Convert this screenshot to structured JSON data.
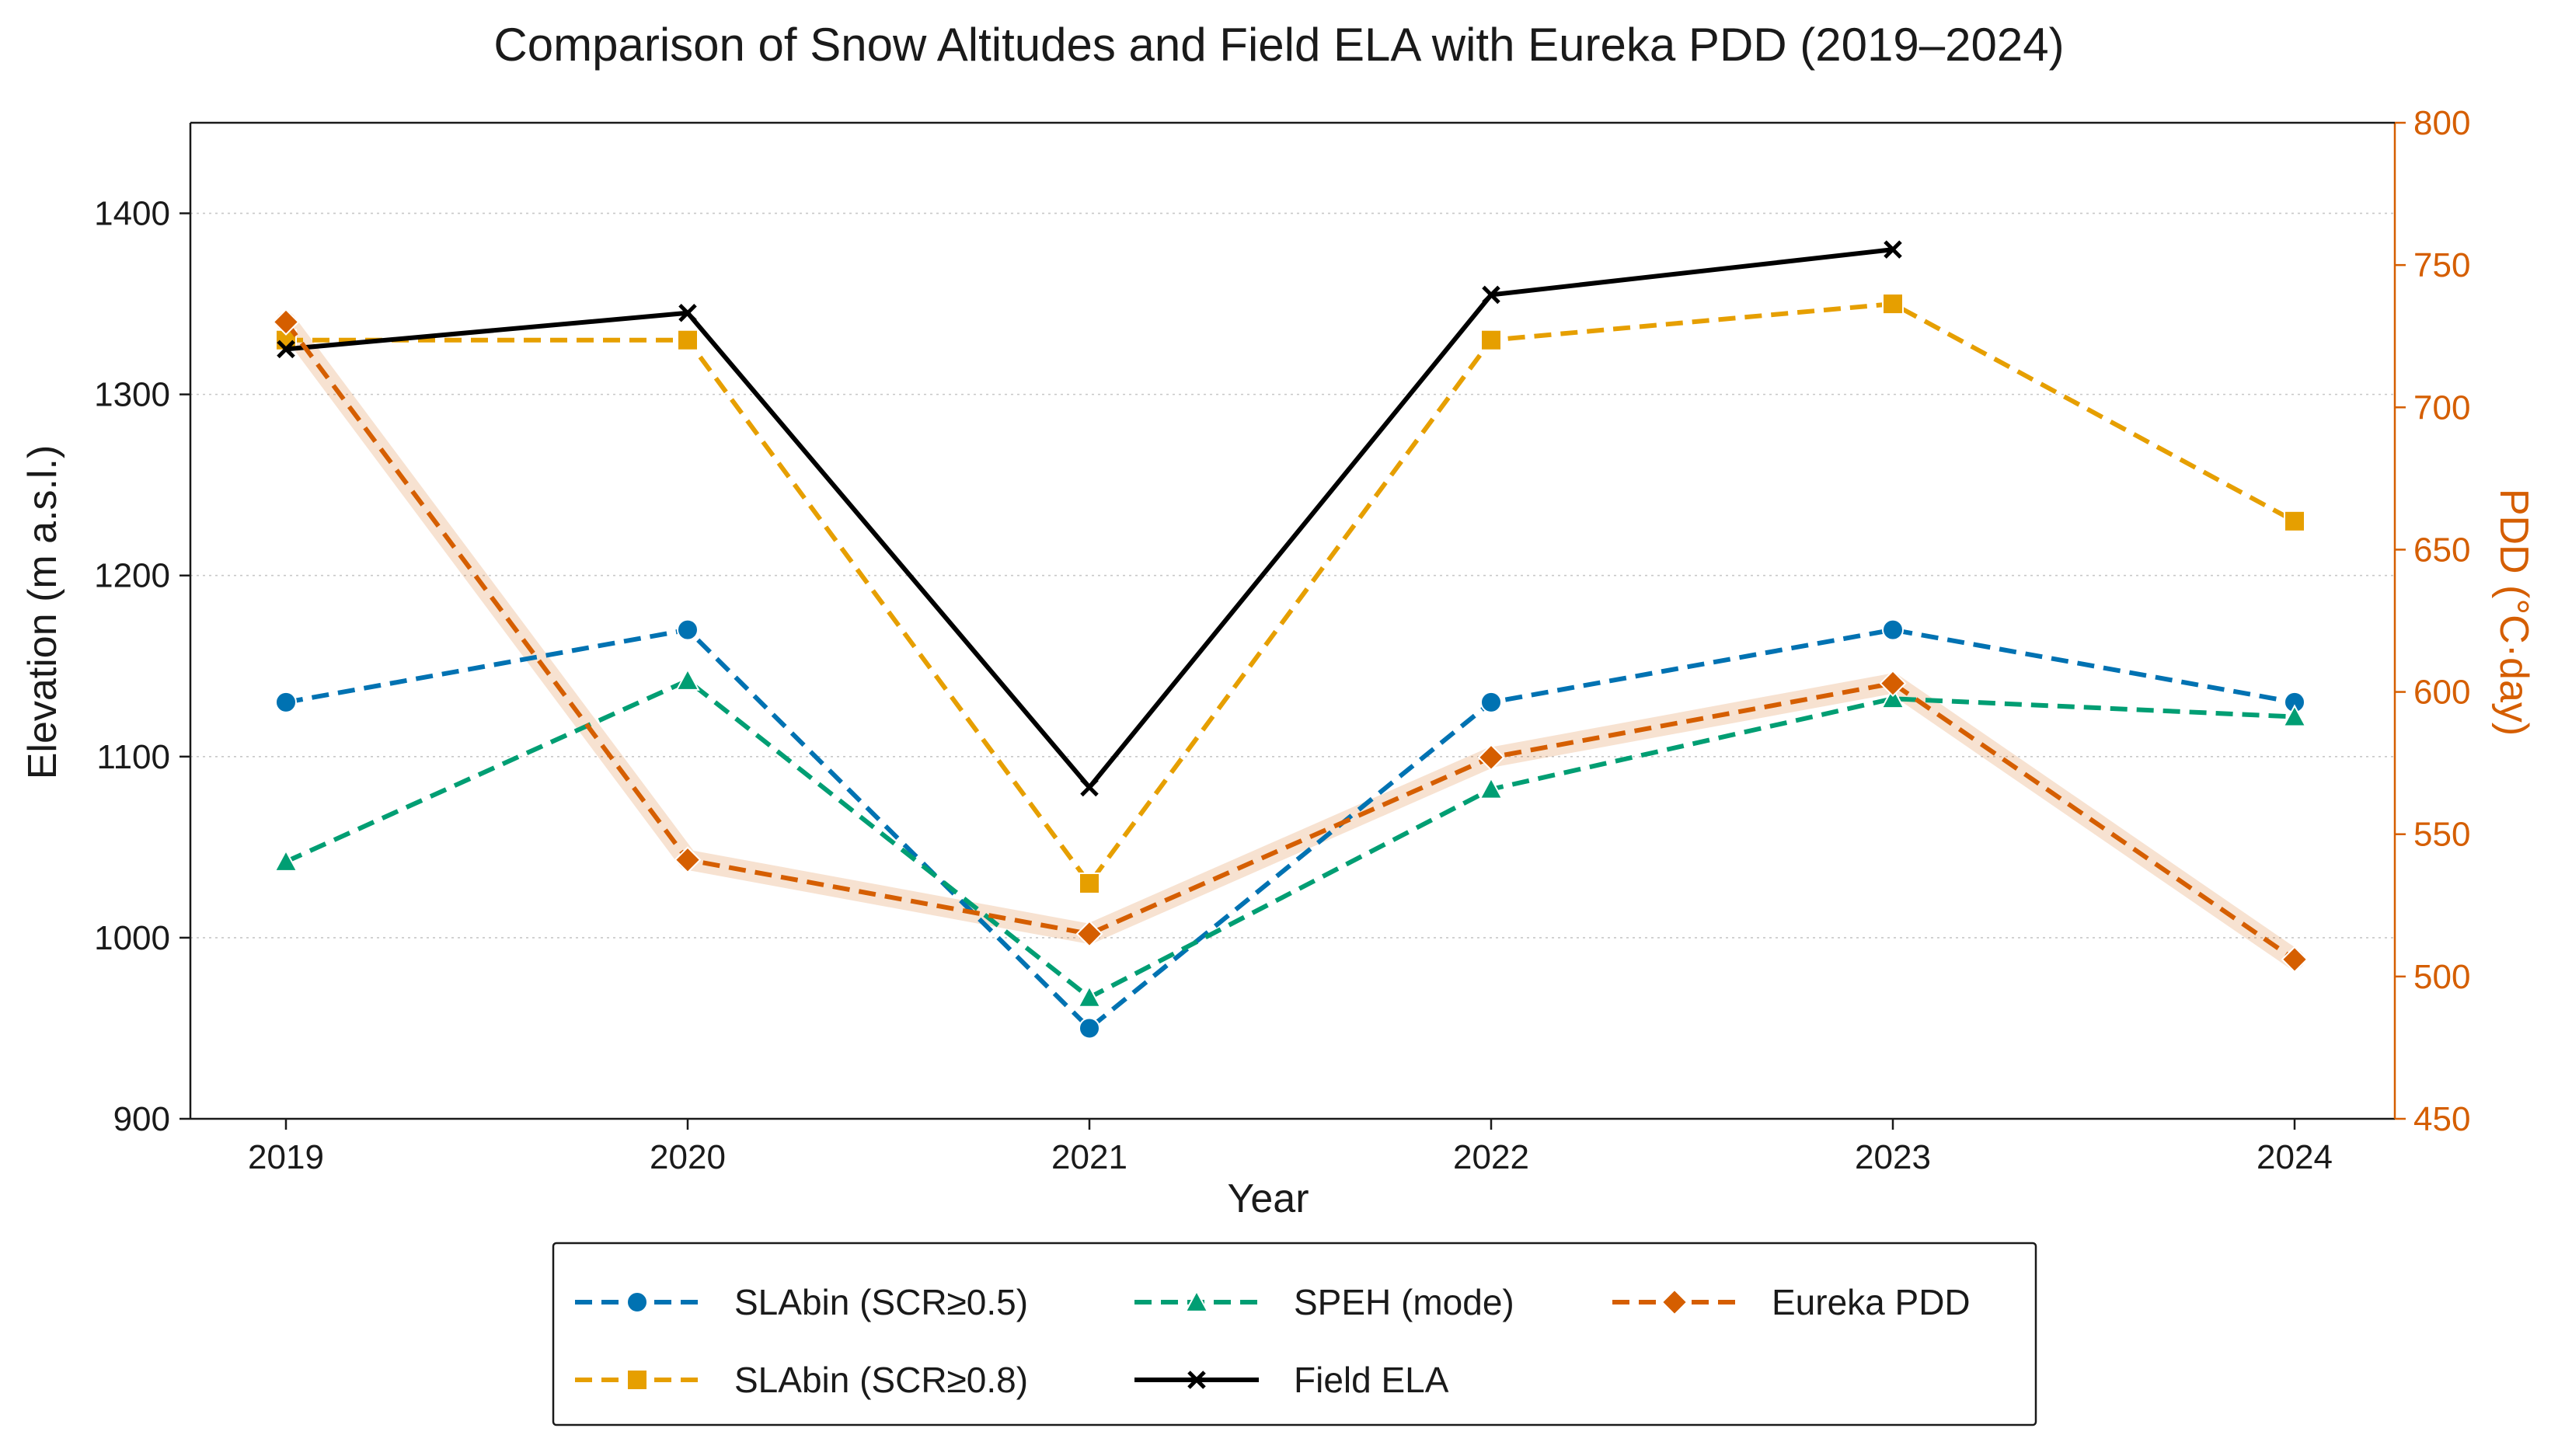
{
  "chart_data": {
    "type": "line",
    "title": "Comparison of Snow Altitudes and Field ELA with Eureka PDD (2019–2024)",
    "xlabel": "Year",
    "ylabel": "Elevation (m a.s.l.)",
    "ylabel_right": "PDD (°C·day)",
    "x": [
      "2019",
      "2020",
      "2021",
      "2022",
      "2023",
      "2024"
    ],
    "ylim": [
      900,
      1450
    ],
    "yticks": [
      900,
      1000,
      1100,
      1200,
      1300,
      1400
    ],
    "ylim_right": [
      450,
      800
    ],
    "yticks_right": [
      450,
      500,
      550,
      600,
      650,
      700,
      750,
      800
    ],
    "grid": "horizontal dotted",
    "legend_position": "bottom-center",
    "series": [
      {
        "name": "SLAbin (SCR≥0.5)",
        "axis": "left",
        "color": "#0072B2",
        "marker": "circle",
        "line": "dashed",
        "values": [
          1130,
          1170,
          950,
          1130,
          1170,
          1130
        ]
      },
      {
        "name": "SLAbin (SCR≥0.8)",
        "axis": "left",
        "color": "#E69F00",
        "marker": "square",
        "line": "dashed",
        "values": [
          1330,
          1330,
          1030,
          1330,
          1350,
          1230
        ]
      },
      {
        "name": "SPEH (mode)",
        "axis": "left",
        "color": "#009E73",
        "marker": "triangle",
        "line": "dashed",
        "values": [
          1042,
          1142,
          967,
          1082,
          1132,
          1122
        ]
      },
      {
        "name": "Field ELA",
        "axis": "left",
        "color": "#000000",
        "marker": "x",
        "line": "solid",
        "values": [
          1325,
          1345,
          1083,
          1355,
          1380,
          null
        ]
      },
      {
        "name": "Eureka PDD",
        "axis": "right",
        "color": "#D55E00",
        "marker": "diamond",
        "line": "dashed",
        "values": [
          730,
          541,
          515,
          577,
          603,
          506
        ]
      }
    ]
  }
}
